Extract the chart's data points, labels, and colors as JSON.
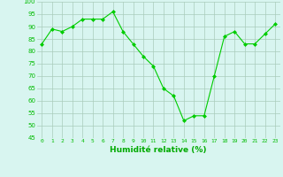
{
  "x": [
    0,
    1,
    2,
    3,
    4,
    5,
    6,
    7,
    8,
    9,
    10,
    11,
    12,
    13,
    14,
    15,
    16,
    17,
    18,
    19,
    20,
    21,
    22,
    23
  ],
  "y": [
    83,
    89,
    88,
    90,
    93,
    93,
    93,
    96,
    88,
    83,
    78,
    74,
    65,
    62,
    52,
    54,
    54,
    70,
    86,
    88,
    83,
    83,
    87,
    91
  ],
  "line_color": "#00cc00",
  "marker_color": "#00cc00",
  "bg_color": "#d8f5f0",
  "grid_color": "#aaccbb",
  "xlabel": "Humidité relative (%)",
  "xlabel_color": "#00aa00",
  "tick_color": "#00bb00",
  "ylim": [
    45,
    100
  ],
  "xlim": [
    -0.5,
    23.5
  ],
  "yticks": [
    45,
    50,
    55,
    60,
    65,
    70,
    75,
    80,
    85,
    90,
    95,
    100
  ],
  "xticks": [
    0,
    1,
    2,
    3,
    4,
    5,
    6,
    7,
    8,
    9,
    10,
    11,
    12,
    13,
    14,
    15,
    16,
    17,
    18,
    19,
    20,
    21,
    22,
    23
  ]
}
